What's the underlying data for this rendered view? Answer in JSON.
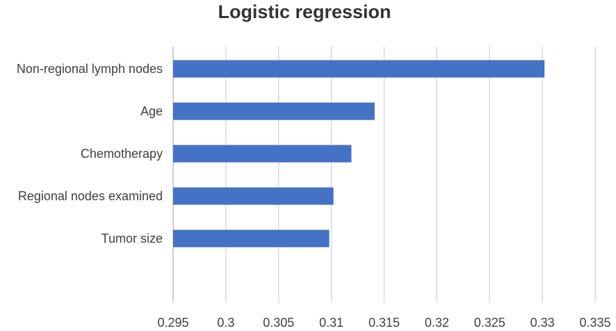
{
  "chart_data": {
    "type": "bar",
    "orientation": "horizontal",
    "title": "Logistic regression",
    "categories": [
      "Non-regional lymph nodes",
      "Age",
      "Chemotherapy",
      "Regional nodes examined",
      "Tumor size"
    ],
    "values": [
      0.3302,
      0.3141,
      0.3119,
      0.3102,
      0.3098
    ],
    "xlim": [
      0.295,
      0.335
    ],
    "xticks": [
      "0.295",
      "0.3",
      "0.305",
      "0.31",
      "0.315",
      "0.32",
      "0.325",
      "0.33",
      "0.335"
    ],
    "xlabel": "",
    "ylabel": "",
    "grid": "vertical",
    "legend": "none",
    "bar_color": "#4472C4",
    "grid_color": "#D9D9D9"
  }
}
